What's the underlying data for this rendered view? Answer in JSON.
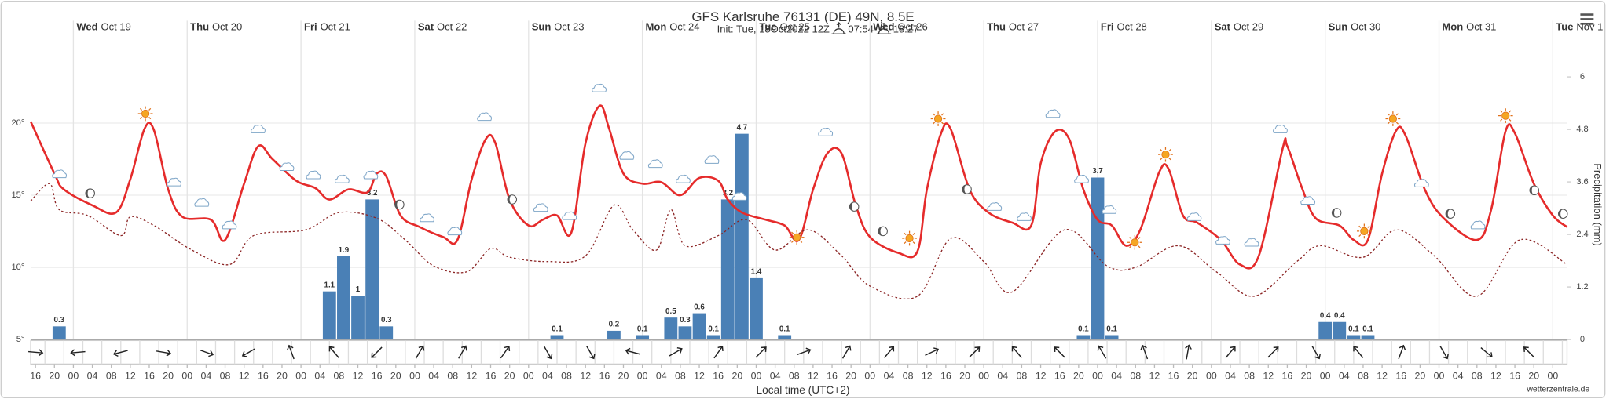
{
  "chart_data": {
    "type": "meteogram",
    "title": "GFS Karlsruhe 76131 (DE) 49N, 8.5E",
    "subtitle": "Init: Tue, 18Oct2022 12Z",
    "sunrise": "07:54",
    "sunset": "18:27",
    "xlabel": "Local time (UTC+2)",
    "y2label": "Precipitation (mm)",
    "credit": "wetterzentrale.de",
    "xlim": [
      15,
      339
    ],
    "ylim": [
      5,
      23.2
    ],
    "yticks": [
      {
        "value": 5,
        "label": "5°"
      },
      {
        "value": 10,
        "label": "10°"
      },
      {
        "value": 15,
        "label": "15°"
      },
      {
        "value": 20,
        "label": "20°"
      }
    ],
    "y2lim": [
      0,
      6
    ],
    "y2ticks": [
      0,
      1.2,
      2.4,
      3.6,
      4.8,
      6
    ],
    "grid": true,
    "day_ticks": [
      {
        "value": 24,
        "label": "Wed",
        "date": "Oct 19"
      },
      {
        "value": 48,
        "label": "Thu",
        "date": "Oct 20"
      },
      {
        "value": 72,
        "label": "Fri",
        "date": "Oct 21"
      },
      {
        "value": 96,
        "label": "Sat",
        "date": "Oct 22"
      },
      {
        "value": 120,
        "label": "Sun",
        "date": "Oct 23"
      },
      {
        "value": 144,
        "label": "Mon",
        "date": "Oct 24"
      },
      {
        "value": 168,
        "label": "Tue",
        "date": "Oct 25"
      },
      {
        "value": 192,
        "label": "Wed",
        "date": "Oct 26"
      },
      {
        "value": 216,
        "label": "Thu",
        "date": "Oct 27"
      },
      {
        "value": 240,
        "label": "Fri",
        "date": "Oct 28"
      },
      {
        "value": 264,
        "label": "Sat",
        "date": "Oct 29"
      },
      {
        "value": 288,
        "label": "Sun",
        "date": "Oct 30"
      },
      {
        "value": 312,
        "label": "Mon",
        "date": "Oct 31"
      },
      {
        "value": 336,
        "label": "Tue",
        "date": "Nov 1"
      }
    ],
    "xticks": [
      {
        "value": 16,
        "label": "16"
      },
      {
        "value": 20,
        "label": "20"
      },
      {
        "value": 24,
        "label": "00"
      },
      {
        "value": 28,
        "label": "04"
      },
      {
        "value": 32,
        "label": "08"
      },
      {
        "value": 36,
        "label": "12"
      },
      {
        "value": 40,
        "label": "16"
      },
      {
        "value": 44,
        "label": "20"
      },
      {
        "value": 48,
        "label": "00"
      },
      {
        "value": 52,
        "label": "04"
      },
      {
        "value": 56,
        "label": "08"
      },
      {
        "value": 60,
        "label": "12"
      },
      {
        "value": 64,
        "label": "16"
      },
      {
        "value": 68,
        "label": "20"
      },
      {
        "value": 72,
        "label": "00"
      },
      {
        "value": 76,
        "label": "04"
      },
      {
        "value": 80,
        "label": "08"
      },
      {
        "value": 84,
        "label": "12"
      },
      {
        "value": 88,
        "label": "16"
      },
      {
        "value": 92,
        "label": "20"
      },
      {
        "value": 96,
        "label": "00"
      },
      {
        "value": 100,
        "label": "04"
      },
      {
        "value": 104,
        "label": "08"
      },
      {
        "value": 108,
        "label": "12"
      },
      {
        "value": 112,
        "label": "16"
      },
      {
        "value": 116,
        "label": "20"
      },
      {
        "value": 120,
        "label": "00"
      },
      {
        "value": 124,
        "label": "04"
      },
      {
        "value": 128,
        "label": "08"
      },
      {
        "value": 132,
        "label": "12"
      },
      {
        "value": 136,
        "label": "16"
      },
      {
        "value": 140,
        "label": "20"
      },
      {
        "value": 144,
        "label": "00"
      },
      {
        "value": 148,
        "label": "04"
      },
      {
        "value": 152,
        "label": "08"
      },
      {
        "value": 156,
        "label": "12"
      },
      {
        "value": 160,
        "label": "16"
      },
      {
        "value": 164,
        "label": "20"
      },
      {
        "value": 168,
        "label": "00"
      },
      {
        "value": 172,
        "label": "04"
      },
      {
        "value": 176,
        "label": "08"
      },
      {
        "value": 180,
        "label": "12"
      },
      {
        "value": 184,
        "label": "16"
      },
      {
        "value": 188,
        "label": "20"
      },
      {
        "value": 192,
        "label": "00"
      },
      {
        "value": 196,
        "label": "04"
      },
      {
        "value": 200,
        "label": "08"
      },
      {
        "value": 204,
        "label": "12"
      },
      {
        "value": 208,
        "label": "16"
      },
      {
        "value": 212,
        "label": "20"
      },
      {
        "value": 216,
        "label": "00"
      },
      {
        "value": 220,
        "label": "04"
      },
      {
        "value": 224,
        "label": "08"
      },
      {
        "value": 228,
        "label": "12"
      },
      {
        "value": 232,
        "label": "16"
      },
      {
        "value": 236,
        "label": "20"
      },
      {
        "value": 240,
        "label": "00"
      },
      {
        "value": 244,
        "label": "04"
      },
      {
        "value": 248,
        "label": "08"
      },
      {
        "value": 252,
        "label": "12"
      },
      {
        "value": 256,
        "label": "16"
      },
      {
        "value": 260,
        "label": "20"
      },
      {
        "value": 264,
        "label": "00"
      },
      {
        "value": 268,
        "label": "04"
      },
      {
        "value": 272,
        "label": "08"
      },
      {
        "value": 276,
        "label": "12"
      },
      {
        "value": 280,
        "label": "16"
      },
      {
        "value": 284,
        "label": "20"
      },
      {
        "value": 288,
        "label": "00"
      },
      {
        "value": 292,
        "label": "04"
      },
      {
        "value": 296,
        "label": "08"
      },
      {
        "value": 300,
        "label": "12"
      },
      {
        "value": 304,
        "label": "16"
      },
      {
        "value": 308,
        "label": "20"
      },
      {
        "value": 312,
        "label": "00"
      },
      {
        "value": 316,
        "label": "04"
      },
      {
        "value": 320,
        "label": "08"
      },
      {
        "value": 324,
        "label": "12"
      },
      {
        "value": 328,
        "label": "16"
      },
      {
        "value": 332,
        "label": "20"
      },
      {
        "value": 336,
        "label": "00"
      }
    ],
    "series": [
      {
        "kind": "line",
        "color": "#e52b2b",
        "x": [
          15,
          20,
          22,
          28,
          33,
          36,
          39,
          41,
          44,
          47,
          53,
          56,
          60,
          63,
          66,
          71,
          75,
          78,
          82,
          86,
          88,
          90,
          93,
          97,
          102,
          105,
          108,
          111,
          113,
          116,
          120,
          123,
          126,
          129,
          132,
          135,
          137,
          140,
          144,
          148,
          152,
          156,
          160,
          162,
          165,
          170,
          174,
          177,
          180,
          183,
          186,
          189,
          192,
          198,
          202,
          204,
          207,
          209,
          213,
          217,
          222,
          226,
          228,
          231,
          234,
          237,
          240,
          243,
          246,
          249,
          253,
          255,
          258,
          261,
          266,
          270,
          274,
          279,
          280,
          283,
          286,
          291,
          294,
          297,
          300,
          303,
          305,
          309,
          313,
          320,
          323,
          326,
          328,
          332,
          336,
          339
        ],
        "values": [
          20.1,
          16.5,
          15.4,
          14.3,
          13.8,
          16.1,
          19.6,
          19.5,
          15.4,
          13.5,
          13.3,
          11.9,
          15.8,
          18.4,
          17.5,
          16.0,
          15.5,
          14.7,
          15.4,
          15.2,
          16.5,
          16.3,
          13.6,
          12.8,
          12.1,
          11.9,
          16.1,
          18.9,
          18.6,
          14.7,
          12.9,
          13.3,
          13.6,
          12.4,
          18.6,
          21.2,
          19.6,
          16.5,
          15.8,
          15.9,
          15.0,
          16.2,
          16.0,
          14.7,
          13.8,
          13.3,
          12.9,
          11.9,
          15.4,
          17.9,
          17.9,
          14.3,
          12.1,
          11.0,
          11.1,
          15.4,
          19.3,
          19.6,
          15.4,
          13.8,
          13.1,
          12.9,
          17.2,
          19.4,
          18.9,
          15.4,
          13.3,
          12.9,
          11.5,
          12.6,
          16.6,
          16.8,
          13.6,
          13.1,
          11.9,
          10.2,
          10.8,
          18.2,
          18.4,
          15.6,
          13.4,
          12.9,
          11.9,
          11.9,
          16.5,
          19.5,
          19.1,
          15.4,
          13.4,
          11.9,
          14.0,
          19.4,
          19.3,
          15.8,
          13.6,
          12.8
        ]
      },
      {
        "kind": "line",
        "color": "#8b2424",
        "dashed": true,
        "x": [
          15,
          19,
          21,
          27,
          34,
          36,
          41,
          49,
          57,
          62,
          73,
          80,
          88,
          94,
          100,
          107,
          112,
          116,
          124,
          132,
          138,
          142,
          147,
          150,
          153,
          160,
          166,
          172,
          179,
          186,
          192,
          202,
          209,
          216,
          222,
          233,
          242,
          248,
          257,
          265,
          273,
          282,
          287,
          296,
          303,
          311,
          320,
          329,
          339
        ],
        "values": [
          14.6,
          15.8,
          14.0,
          13.6,
          12.2,
          13.5,
          12.9,
          11.2,
          10.2,
          12.2,
          12.6,
          13.8,
          13.4,
          11.9,
          10.1,
          9.7,
          11.3,
          10.7,
          10.4,
          10.8,
          14.3,
          12.6,
          11.2,
          14.0,
          11.5,
          12.2,
          13.3,
          11.2,
          12.6,
          10.8,
          8.7,
          8.0,
          12.0,
          10.4,
          8.3,
          12.6,
          10.1,
          10.0,
          11.5,
          9.7,
          8.0,
          10.4,
          11.5,
          10.7,
          12.6,
          10.8,
          8.0,
          11.9,
          10.2
        ]
      },
      {
        "kind": "bar",
        "axis": "y2",
        "color": "#4a80b6",
        "width": 3,
        "x": [
          21,
          78,
          81,
          84,
          87,
          90,
          126,
          138,
          144,
          150,
          153,
          156,
          159,
          162,
          165,
          168,
          174,
          237,
          240,
          243,
          288,
          291,
          294,
          297
        ],
        "values": [
          0.3,
          1.1,
          1.9,
          1.0,
          3.2,
          0.3,
          0.1,
          0.2,
          0.1,
          0.5,
          0.3,
          0.6,
          0.1,
          3.2,
          4.7,
          1.4,
          0.1,
          0.1,
          3.7,
          0.1,
          0.4,
          0.4,
          0.1,
          0.1
        ]
      }
    ],
    "wind_arrows": {
      "x": [
        16,
        25,
        34,
        43,
        52,
        61,
        70,
        79,
        88,
        97,
        106,
        115,
        124,
        133,
        142,
        151,
        160,
        169,
        178,
        187,
        196,
        205,
        214,
        223,
        232,
        241,
        250,
        259,
        268,
        277,
        286,
        295,
        304,
        313,
        322,
        331
      ],
      "direction": [
        95,
        265,
        255,
        100,
        110,
        240,
        340,
        320,
        225,
        30,
        30,
        35,
        150,
        150,
        285,
        60,
        35,
        45,
        70,
        30,
        40,
        65,
        45,
        320,
        315,
        330,
        340,
        10,
        40,
        45,
        150,
        320,
        20,
        150,
        130,
        315
      ]
    }
  }
}
